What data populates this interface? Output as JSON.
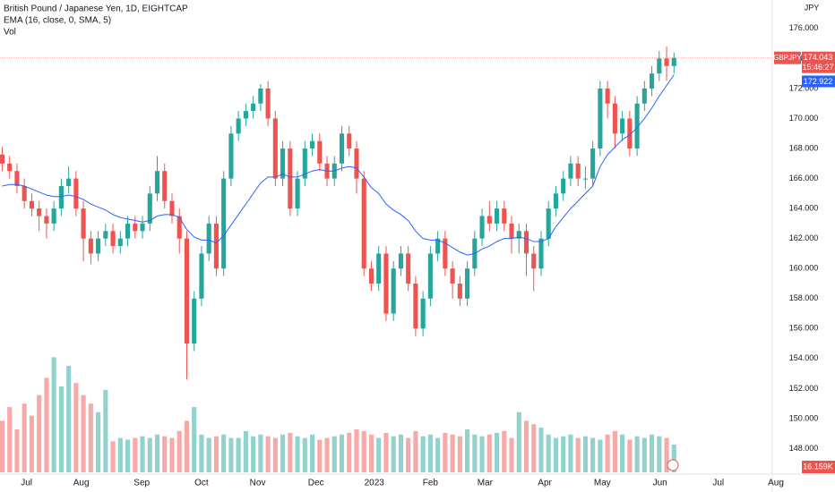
{
  "chart_data": {
    "type": "candlestick",
    "title": "British Pound / Japanese Yen, 1D, EIGHTCAP",
    "symbol": "GBPJPY",
    "countdown": "15:46:27",
    "currency": "JPY",
    "up_color": "#26a69a",
    "down_color": "#ef5350",
    "grid": false,
    "xlim": [
      -0.3,
      106.5
    ],
    "xticks": [
      {
        "value": 3.3,
        "label": "Jul"
      },
      {
        "value": 10.7,
        "label": "Aug"
      },
      {
        "value": 18.9,
        "label": "Sep"
      },
      {
        "value": 27.0,
        "label": "Oct"
      },
      {
        "value": 34.6,
        "label": "Nov"
      },
      {
        "value": 42.5,
        "label": "Dec"
      },
      {
        "value": 50.4,
        "label": "2023"
      },
      {
        "value": 58.0,
        "label": "Feb"
      },
      {
        "value": 65.4,
        "label": "Mar"
      },
      {
        "value": 73.5,
        "label": "Apr"
      },
      {
        "value": 81.3,
        "label": "May"
      },
      {
        "value": 89.1,
        "label": "Jun"
      },
      {
        "value": 97.0,
        "label": "Jul"
      },
      {
        "value": 104.8,
        "label": "Aug"
      }
    ],
    "ylim": [
      146.3,
      177.9
    ],
    "yticks": [
      {
        "value": 148,
        "label": "148.000"
      },
      {
        "value": 150,
        "label": "150.000"
      },
      {
        "value": 152,
        "label": "152.000"
      },
      {
        "value": 154,
        "label": "154.000"
      },
      {
        "value": 156,
        "label": "156.000"
      },
      {
        "value": 158,
        "label": "158.000"
      },
      {
        "value": 160,
        "label": "160.000"
      },
      {
        "value": 162,
        "label": "162.000"
      },
      {
        "value": 164,
        "label": "164.000"
      },
      {
        "value": 166,
        "label": "166.000"
      },
      {
        "value": 168,
        "label": "168.000"
      },
      {
        "value": 170,
        "label": "170.000"
      },
      {
        "value": 172,
        "label": "172.000"
      },
      {
        "value": 174,
        "label": "174.000"
      },
      {
        "value": 176,
        "label": "176.000"
      }
    ],
    "open": [
      167.6,
      167,
      166.5,
      165.5,
      164.5,
      164,
      163.5,
      163,
      164,
      165.5,
      166,
      164,
      162,
      161,
      162,
      162.5,
      161.5,
      162,
      163,
      162.5,
      163,
      165,
      166.5,
      164.5,
      163.5,
      162,
      155,
      158,
      161,
      163,
      160,
      166,
      169,
      170,
      170.5,
      171,
      172,
      170,
      166,
      168,
      164,
      166,
      168,
      168.5,
      167,
      166,
      167,
      169,
      168,
      166,
      160,
      159,
      161,
      157,
      160,
      161,
      159,
      156,
      158,
      161,
      162,
      160,
      159,
      158,
      160,
      162,
      163.5,
      163,
      164,
      163,
      162,
      162.5,
      161,
      160,
      162,
      164,
      165,
      166,
      167,
      166,
      166,
      168,
      172,
      171,
      169,
      170,
      168,
      171,
      172,
      173,
      174,
      173.5
    ],
    "high": [
      168.1,
      167.5,
      167,
      166,
      165,
      164.5,
      164,
      164.5,
      166,
      166.8,
      166.5,
      164.5,
      162.5,
      162.5,
      163,
      163,
      162.5,
      163.5,
      163.5,
      163.5,
      165.5,
      167.5,
      167,
      165,
      164,
      162.5,
      158.5,
      161.5,
      163.5,
      163.5,
      166.5,
      169.5,
      170.5,
      171,
      171.5,
      172.3,
      172.5,
      170.5,
      168.5,
      168.5,
      166.5,
      168.5,
      169,
      169,
      167.5,
      167.5,
      169.5,
      169.5,
      168.5,
      166.5,
      160.5,
      161.5,
      161.5,
      160.5,
      161.5,
      161.5,
      159.5,
      158.5,
      161.5,
      162.5,
      162.5,
      160.5,
      159.5,
      160.5,
      162.5,
      164,
      164.5,
      164.5,
      164.5,
      163.5,
      163,
      163,
      161.5,
      162.5,
      164.5,
      165.5,
      166.5,
      167.5,
      167.5,
      166.8,
      168.5,
      172.5,
      172.5,
      171.5,
      170.5,
      170.5,
      171.5,
      172.5,
      173.5,
      174.5,
      174.8,
      174.4
    ],
    "low": [
      166.5,
      166,
      165,
      164,
      163.5,
      162.5,
      162,
      162.5,
      163.5,
      165,
      163.5,
      160.5,
      160.3,
      160.5,
      161.5,
      161,
      161,
      161.5,
      162,
      162,
      162.5,
      164.5,
      164,
      163,
      161,
      152.6,
      154.5,
      157.5,
      160.5,
      159.5,
      159.5,
      165.5,
      168.5,
      169.5,
      170,
      170.5,
      169.5,
      165.5,
      165.5,
      163.5,
      163.5,
      165.5,
      167.5,
      166.5,
      165.5,
      165.5,
      166.5,
      167.5,
      165,
      159.5,
      158.5,
      158.5,
      156.5,
      156.5,
      159.5,
      158.5,
      155.5,
      155.5,
      157.5,
      160.5,
      159.5,
      158,
      157.5,
      157.5,
      159.5,
      161.5,
      162.5,
      162.5,
      162.5,
      161,
      161,
      159.5,
      158.5,
      159.5,
      161.5,
      163.5,
      164.5,
      165.5,
      165.5,
      165.3,
      165.5,
      167.5,
      170,
      168,
      168.5,
      167.5,
      167.5,
      170.5,
      171.5,
      172.5,
      172.5,
      173
    ],
    "close": [
      167,
      166.5,
      165.5,
      164.5,
      164,
      163.5,
      163,
      164,
      165.5,
      166,
      164,
      162,
      161,
      162,
      162.5,
      161.5,
      162,
      163,
      162.5,
      163,
      165,
      166.5,
      164.5,
      163.5,
      162,
      155,
      158,
      161,
      163,
      160,
      166,
      169,
      170,
      170.5,
      171,
      172,
      170,
      166,
      168,
      164,
      166,
      168,
      168.5,
      167,
      166,
      167,
      169,
      168,
      166,
      160,
      159,
      161,
      157,
      160,
      161,
      159,
      156,
      158,
      161,
      162,
      160,
      159,
      158,
      160,
      162,
      163.5,
      163,
      164,
      163,
      162,
      162.5,
      161,
      160,
      162,
      164,
      165,
      166,
      167,
      166,
      166,
      168,
      172,
      171,
      169,
      170,
      168,
      171,
      172,
      173,
      174,
      173.5,
      174.043
    ],
    "ema": {
      "name": "EMA (16, close, 0, SMA, 5)",
      "color": "#2962ff",
      "values": [
        165.5,
        165.6,
        165.6,
        165.5,
        165.3,
        165.1,
        164.9,
        164.8,
        164.8,
        164.9,
        164.8,
        164.6,
        164.3,
        164.1,
        163.9,
        163.6,
        163.4,
        163.3,
        163.2,
        163.1,
        163.2,
        163.5,
        163.6,
        163.6,
        163.4,
        162.6,
        162.1,
        161.9,
        161.9,
        161.7,
        162.2,
        162.9,
        163.6,
        164.3,
        165,
        165.7,
        166.1,
        166.1,
        166.3,
        166.1,
        166.1,
        166.3,
        166.5,
        166.6,
        166.5,
        166.5,
        166.7,
        166.8,
        166.7,
        166.1,
        165.4,
        165,
        164.3,
        163.9,
        163.6,
        163.2,
        162.5,
        162,
        161.9,
        161.9,
        161.7,
        161.4,
        161.1,
        160.9,
        161,
        161.3,
        161.5,
        161.8,
        162,
        162,
        162.1,
        162,
        161.8,
        161.8,
        162,
        162.8,
        163.4,
        164,
        164.5,
        165,
        165.5,
        166.8,
        167.6,
        168.1,
        168.6,
        168.9,
        169.4,
        170,
        170.7,
        171.5,
        172.2,
        172.922
      ]
    },
    "volume": {
      "name": "Vol",
      "ylim": [
        0,
        100
      ],
      "last_label": "16.159K",
      "values": [
        30,
        38,
        25,
        40,
        33,
        45,
        55,
        67,
        50,
        62,
        52,
        45,
        40,
        35,
        48,
        18,
        20,
        19,
        20,
        21,
        20,
        22,
        21,
        20,
        24,
        30,
        38,
        22,
        20,
        21,
        22,
        20,
        20,
        24,
        21,
        22,
        21,
        20,
        22,
        23,
        21,
        20,
        22,
        19,
        20,
        21,
        22,
        23,
        25,
        24,
        22,
        20,
        23,
        21,
        22,
        20,
        24,
        21,
        22,
        20,
        23,
        22,
        21,
        25,
        22,
        21,
        22,
        23,
        24,
        20,
        35,
        30,
        28,
        26,
        22,
        20,
        21,
        22,
        20,
        21,
        20,
        19,
        22,
        24,
        22,
        19,
        21,
        20,
        22,
        21,
        20,
        16.159
      ]
    }
  }
}
